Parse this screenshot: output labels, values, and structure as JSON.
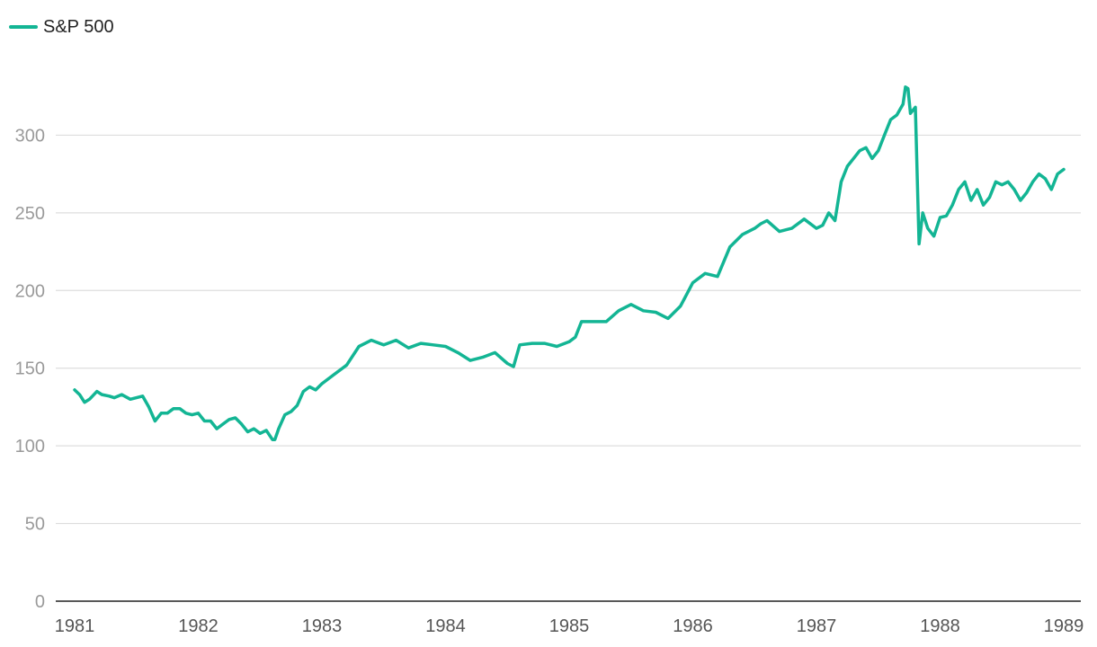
{
  "colors": {
    "series": "#13b594",
    "grid": "#dddddd",
    "axis": "#222222",
    "ytick_text": "#9a9a9a",
    "xtick_text": "#555555"
  },
  "chart_data": {
    "type": "line",
    "title": "",
    "xlabel": "",
    "ylabel": "",
    "xlim": [
      1981,
      1989
    ],
    "ylim": [
      0,
      350
    ],
    "yticks": [
      0,
      50,
      100,
      150,
      200,
      250,
      300
    ],
    "xticks": [
      1981,
      1982,
      1983,
      1984,
      1985,
      1986,
      1987,
      1988,
      1989
    ],
    "grid": true,
    "legend_position": "top-left",
    "series": [
      {
        "name": "S&P 500",
        "x": [
          1981.0,
          1981.04,
          1981.08,
          1981.12,
          1981.18,
          1981.22,
          1981.28,
          1981.32,
          1981.38,
          1981.45,
          1981.5,
          1981.55,
          1981.6,
          1981.65,
          1981.7,
          1981.75,
          1981.8,
          1981.85,
          1981.9,
          1981.95,
          1982.0,
          1982.05,
          1982.1,
          1982.15,
          1982.2,
          1982.25,
          1982.3,
          1982.35,
          1982.4,
          1982.45,
          1982.5,
          1982.55,
          1982.6,
          1982.62,
          1982.65,
          1982.7,
          1982.75,
          1982.8,
          1982.85,
          1982.9,
          1982.95,
          1983.0,
          1983.1,
          1983.2,
          1983.3,
          1983.4,
          1983.5,
          1983.6,
          1983.7,
          1983.8,
          1983.9,
          1984.0,
          1984.1,
          1984.2,
          1984.3,
          1984.4,
          1984.5,
          1984.55,
          1984.6,
          1984.7,
          1984.8,
          1984.9,
          1985.0,
          1985.05,
          1985.1,
          1985.2,
          1985.3,
          1985.4,
          1985.5,
          1985.6,
          1985.7,
          1985.8,
          1985.9,
          1986.0,
          1986.1,
          1986.2,
          1986.3,
          1986.4,
          1986.5,
          1986.55,
          1986.6,
          1986.7,
          1986.8,
          1986.9,
          1987.0,
          1987.05,
          1987.1,
          1987.15,
          1987.2,
          1987.25,
          1987.3,
          1987.35,
          1987.4,
          1987.45,
          1987.5,
          1987.55,
          1987.6,
          1987.65,
          1987.7,
          1987.72,
          1987.74,
          1987.76,
          1987.78,
          1987.8,
          1987.83,
          1987.86,
          1987.9,
          1987.95,
          1988.0,
          1988.05,
          1988.1,
          1988.15,
          1988.2,
          1988.25,
          1988.3,
          1988.35,
          1988.4,
          1988.45,
          1988.5,
          1988.55,
          1988.6,
          1988.65,
          1988.7,
          1988.75,
          1988.8,
          1988.85,
          1988.9,
          1988.95,
          1989.0
        ],
        "y": [
          136,
          133,
          128,
          130,
          135,
          133,
          132,
          131,
          133,
          130,
          131,
          132,
          125,
          116,
          121,
          121,
          124,
          124,
          121,
          120,
          121,
          116,
          116,
          111,
          114,
          117,
          118,
          114,
          109,
          111,
          108,
          110,
          104,
          104,
          111,
          120,
          122,
          126,
          135,
          138,
          136,
          140,
          146,
          152,
          164,
          168,
          165,
          168,
          163,
          166,
          165,
          164,
          160,
          155,
          157,
          160,
          153,
          151,
          165,
          166,
          166,
          164,
          167,
          170,
          180,
          180,
          180,
          187,
          191,
          187,
          186,
          182,
          190,
          205,
          211,
          209,
          228,
          236,
          240,
          243,
          245,
          238,
          240,
          246,
          240,
          242,
          250,
          245,
          270,
          280,
          285,
          290,
          292,
          285,
          290,
          300,
          310,
          313,
          320,
          331,
          330,
          314,
          316,
          318,
          230,
          250,
          240,
          235,
          247,
          248,
          255,
          265,
          270,
          258,
          265,
          255,
          260,
          270,
          268,
          270,
          265,
          258,
          263,
          270,
          275,
          272,
          265,
          275,
          278
        ]
      }
    ]
  }
}
